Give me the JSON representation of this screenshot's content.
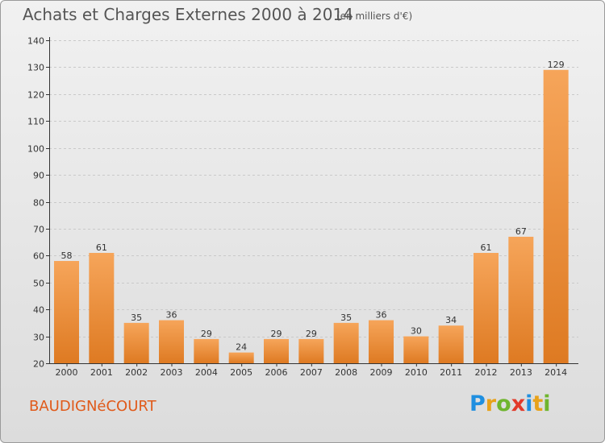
{
  "title": "Achats et Charges Externes 2000 à 2014",
  "subtitle": "(en milliers d'€)",
  "town": "BAUDIGNéCOURT",
  "brand": {
    "name": "Proxiti",
    "letters": [
      {
        "ch": "P",
        "color": "#1f8fe0"
      },
      {
        "ch": "r",
        "color": "#e8a21a"
      },
      {
        "ch": "o",
        "color": "#6fb52e"
      },
      {
        "ch": "x",
        "color": "#e23a2a"
      },
      {
        "ch": "i",
        "color": "#1f8fe0"
      },
      {
        "ch": "t",
        "color": "#e8a21a"
      },
      {
        "ch": "i",
        "color": "#6fb52e"
      }
    ]
  },
  "colors": {
    "bar_light": "#f6a55a",
    "bar_dark": "#de7a22",
    "axis": "#333333",
    "grid": "#c9c9c9",
    "text": "#333333"
  },
  "chart_data": {
    "type": "bar",
    "categories": [
      "2000",
      "2001",
      "2002",
      "2003",
      "2004",
      "2005",
      "2006",
      "2007",
      "2008",
      "2009",
      "2010",
      "2011",
      "2012",
      "2013",
      "2014"
    ],
    "values": [
      58,
      61,
      35,
      36,
      29,
      24,
      29,
      29,
      35,
      36,
      30,
      34,
      61,
      67,
      129
    ],
    "ylim": [
      20,
      140
    ],
    "yticks": [
      20,
      30,
      40,
      50,
      60,
      70,
      80,
      90,
      100,
      110,
      120,
      130,
      140
    ],
    "grid": true,
    "xlabel": "",
    "ylabel": ""
  }
}
